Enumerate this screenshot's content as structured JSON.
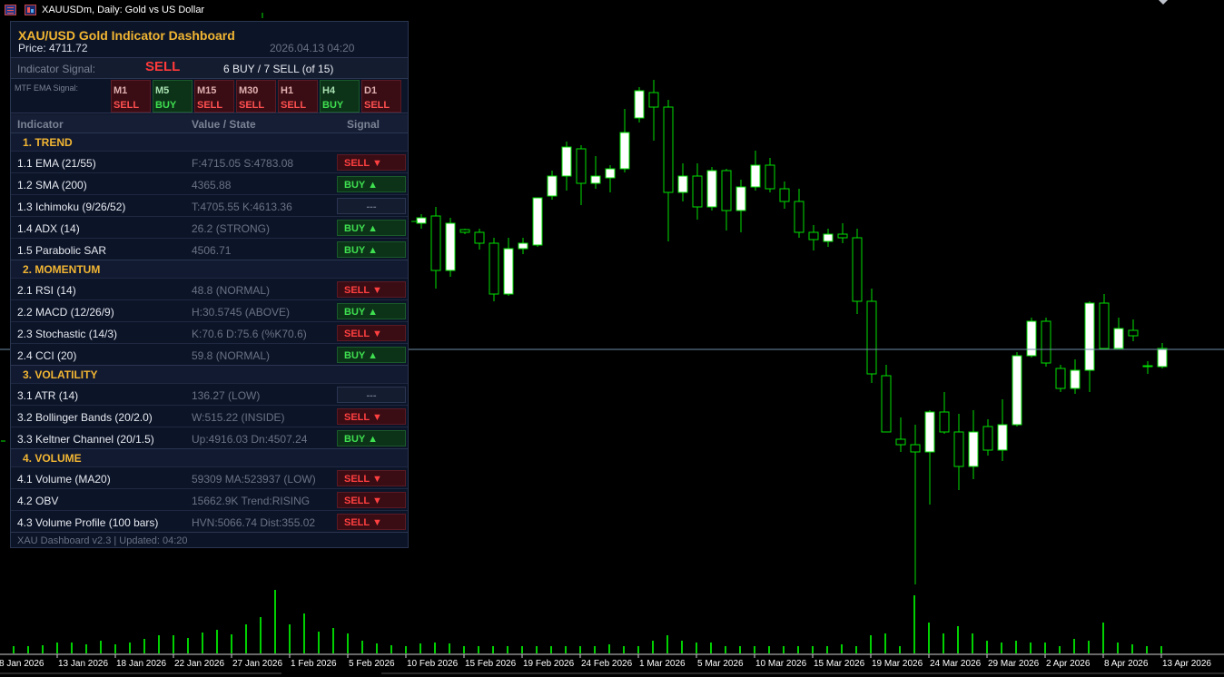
{
  "window": {
    "title": "XAUUSDm, Daily:  Gold vs US Dollar",
    "icons": [
      "chart-icon",
      "window-icon"
    ]
  },
  "chart": {
    "symbol": "XAUUSDm",
    "timeframe": "Daily",
    "colors": {
      "background": "#000000",
      "bull_fill": "#ffffff",
      "bear_fill": "#000000",
      "wick": "#00e000",
      "volume": "#00d000",
      "price_line": "#6f8fa8"
    },
    "x_labels": [
      "8 Jan 2026",
      "13 Jan 2026",
      "18 Jan 2026",
      "22 Jan 2026",
      "27 Jan 2026",
      "1 Feb 2026",
      "5 Feb 2026",
      "10 Feb 2026",
      "15 Feb 2026",
      "19 Feb 2026",
      "24 Feb 2026",
      "1 Mar 2026",
      "5 Mar 2026",
      "10 Mar 2026",
      "15 Mar 2026",
      "19 Mar 2026",
      "24 Mar 2026",
      "29 Mar 2026",
      "2 Apr 2026",
      "8 Apr 2026",
      "13 Apr 2026"
    ]
  },
  "dashboard": {
    "title": "XAU/USD  Gold Indicator Dashboard",
    "price": "Price: 4711.72",
    "datetime": "2026.04.13 04:20",
    "signal_label": "Indicator Signal:",
    "signal_value": "SELL",
    "signal_count": "6 BUY / 7 SELL  (of 15)",
    "mtf_label": "MTF EMA Signal:",
    "mtf": [
      {
        "tf": "M1",
        "sig": "SELL"
      },
      {
        "tf": "M5",
        "sig": "BUY"
      },
      {
        "tf": "M15",
        "sig": "SELL"
      },
      {
        "tf": "M30",
        "sig": "SELL"
      },
      {
        "tf": "H1",
        "sig": "SELL"
      },
      {
        "tf": "H4",
        "sig": "BUY"
      },
      {
        "tf": "D1",
        "sig": "SELL"
      }
    ],
    "col_indicator": "Indicator",
    "col_value": "Value / State",
    "col_signal": "Signal",
    "sections": [
      {
        "title": "1. TREND",
        "rows": [
          {
            "name": "1.1  EMA (21/55)",
            "value": "F:4715.05  S:4783.08",
            "signal": "SELL ▼",
            "kind": "sell"
          },
          {
            "name": "1.2  SMA (200)",
            "value": "4365.88",
            "signal": "BUY  ▲",
            "kind": "buy"
          },
          {
            "name": "1.3  Ichimoku (9/26/52)",
            "value": "T:4705.55  K:4613.36",
            "signal": "---",
            "kind": "neutral"
          },
          {
            "name": "1.4  ADX (14)",
            "value": "26.2 (STRONG)",
            "signal": "BUY  ▲",
            "kind": "buy"
          },
          {
            "name": "1.5  Parabolic SAR",
            "value": "4506.71",
            "signal": "BUY  ▲",
            "kind": "buy"
          }
        ]
      },
      {
        "title": "2. MOMENTUM",
        "rows": [
          {
            "name": "2.1  RSI (14)",
            "value": "48.8 (NORMAL)",
            "signal": "SELL ▼",
            "kind": "sell"
          },
          {
            "name": "2.2  MACD (12/26/9)",
            "value": "H:30.5745 (ABOVE)",
            "signal": "BUY  ▲",
            "kind": "buy"
          },
          {
            "name": "2.3  Stochastic (14/3)",
            "value": "K:70.6  D:75.6 (%K70.6)",
            "signal": "SELL ▼",
            "kind": "sell"
          },
          {
            "name": "2.4  CCI (20)",
            "value": "59.8 (NORMAL)",
            "signal": "BUY  ▲",
            "kind": "buy"
          }
        ]
      },
      {
        "title": "3. VOLATILITY",
        "rows": [
          {
            "name": "3.1  ATR (14)",
            "value": "136.27 (LOW)",
            "signal": "---",
            "kind": "neutral"
          },
          {
            "name": "3.2  Bollinger Bands (20/2.0)",
            "value": "W:515.22 (INSIDE)",
            "signal": "SELL ▼",
            "kind": "sell"
          },
          {
            "name": "3.3  Keltner Channel (20/1.5)",
            "value": "Up:4916.03  Dn:4507.24",
            "signal": "BUY  ▲",
            "kind": "buy"
          }
        ]
      },
      {
        "title": "4. VOLUME",
        "rows": [
          {
            "name": "4.1  Volume (MA20)",
            "value": "59309  MA:523937 (LOW)",
            "signal": "SELL ▼",
            "kind": "sell"
          },
          {
            "name": "4.2  OBV",
            "value": "15662.9K  Trend:RISING",
            "signal": "SELL ▼",
            "kind": "sell"
          },
          {
            "name": "4.3  Volume Profile (100 bars)",
            "value": "HVN:5066.74  Dist:355.02",
            "signal": "SELL ▼",
            "kind": "sell"
          }
        ]
      }
    ],
    "footer": "XAU Dashboard v2.3  |  Updated: 04:20"
  }
}
